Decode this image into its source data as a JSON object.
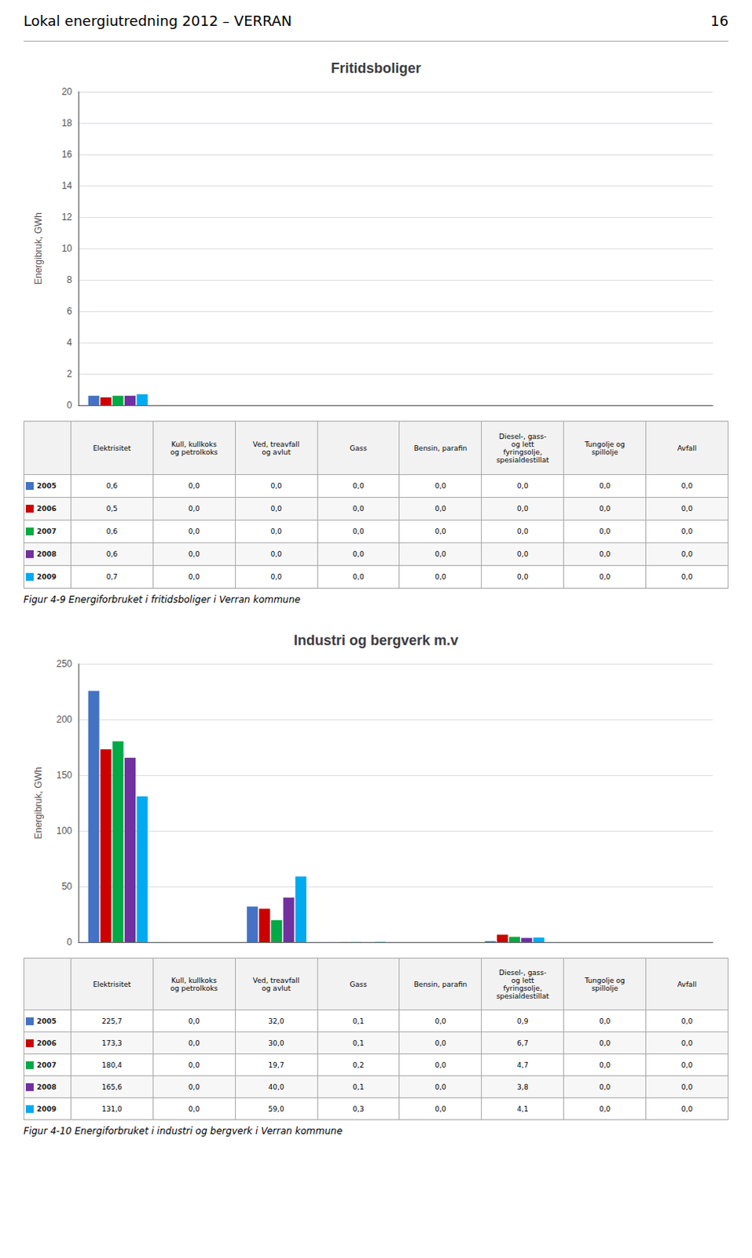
{
  "page_title": "Lokal energiutredning 2012 – VERRAN",
  "page_number": "16",
  "chart_data": [
    {
      "type": "bar",
      "title": "Fritidsboliger",
      "caption": "Figur 4-9 Energiforbruket i fritidsboliger i Verran kommune",
      "ylabel": "Energibruk, GWh",
      "categories": [
        "Elektrisitet",
        "Kull, kullkoks\nog petrolkoks",
        "Ved, treavfall\nog avlut",
        "Gass",
        "Bensin, parafin",
        "Diesel-, gass-\nog lett\nfyringsolje,\nspesialdestillat",
        "Tungolje og\nspillolje",
        "Avfall"
      ],
      "series": [
        {
          "name": "2005",
          "color": "#4472C4",
          "values": [
            0.6,
            0.0,
            0.0,
            0.0,
            0.0,
            0.0,
            0.0,
            0.0
          ],
          "value_labels": [
            "0,6",
            "0,0",
            "0,0",
            "0,0",
            "0,0",
            "0,0",
            "0,0",
            "0,0"
          ]
        },
        {
          "name": "2006",
          "color": "#CC0000",
          "values": [
            0.5,
            0.0,
            0.0,
            0.0,
            0.0,
            0.0,
            0.0,
            0.0
          ],
          "value_labels": [
            "0,5",
            "0,0",
            "0,0",
            "0,0",
            "0,0",
            "0,0",
            "0,0",
            "0,0"
          ]
        },
        {
          "name": "2007",
          "color": "#00AA44",
          "values": [
            0.6,
            0.0,
            0.0,
            0.0,
            0.0,
            0.0,
            0.0,
            0.0
          ],
          "value_labels": [
            "0,6",
            "0,0",
            "0,0",
            "0,0",
            "0,0",
            "0,0",
            "0,0",
            "0,0"
          ]
        },
        {
          "name": "2008",
          "color": "#7030A0",
          "values": [
            0.6,
            0.0,
            0.0,
            0.0,
            0.0,
            0.0,
            0.0,
            0.0
          ],
          "value_labels": [
            "0,6",
            "0,0",
            "0,0",
            "0,0",
            "0,0",
            "0,0",
            "0,0",
            "0,0"
          ]
        },
        {
          "name": "2009",
          "color": "#00AAEE",
          "values": [
            0.7,
            0.0,
            0.0,
            0.0,
            0.0,
            0.0,
            0.0,
            0.0
          ],
          "value_labels": [
            "0,7",
            "0,0",
            "0,0",
            "0,0",
            "0,0",
            "0,0",
            "0,0",
            "0,0"
          ]
        }
      ],
      "ylim": [
        0,
        20
      ],
      "yticks": [
        0,
        2,
        4,
        6,
        8,
        10,
        12,
        14,
        16,
        18,
        20
      ],
      "grid": true,
      "tick_labels": "y"
    },
    {
      "type": "bar",
      "title": "Industri og bergverk m.v",
      "caption": "Figur 4-10 Energiforbruket i industri og bergverk i Verran kommune",
      "ylabel": "Energibruk, GWh",
      "categories": [
        "Elektrisitet",
        "Kull, kullkoks\nog petrolkoks",
        "Ved, treavfall\nog avlut",
        "Gass",
        "Bensin, parafin",
        "Diesel-, gass-\nog lett\nfyringsolje,\nspesialdestillat",
        "Tungolje og\nspillolje",
        "Avfall"
      ],
      "series": [
        {
          "name": "2005",
          "color": "#4472C4",
          "values": [
            225.7,
            0.0,
            32.0,
            0.1,
            0.0,
            0.9,
            0.0,
            0.0
          ],
          "value_labels": [
            "225,7",
            "0,0",
            "32,0",
            "0,1",
            "0,0",
            "0,9",
            "0,0",
            "0,0"
          ]
        },
        {
          "name": "2006",
          "color": "#CC0000",
          "values": [
            173.3,
            0.0,
            30.0,
            0.1,
            0.0,
            6.7,
            0.0,
            0.0
          ],
          "value_labels": [
            "173,3",
            "0,0",
            "30,0",
            "0,1",
            "0,0",
            "6,7",
            "0,0",
            "0,0"
          ]
        },
        {
          "name": "2007",
          "color": "#00AA44",
          "values": [
            180.4,
            0.0,
            19.7,
            0.2,
            0.0,
            4.7,
            0.0,
            0.0
          ],
          "value_labels": [
            "180,4",
            "0,0",
            "19,7",
            "0,2",
            "0,0",
            "4,7",
            "0,0",
            "0,0"
          ]
        },
        {
          "name": "2008",
          "color": "#7030A0",
          "values": [
            165.6,
            0.0,
            40.0,
            0.1,
            0.0,
            3.8,
            0.0,
            0.0
          ],
          "value_labels": [
            "165,6",
            "0,0",
            "40,0",
            "0,1",
            "0,0",
            "3,8",
            "0,0",
            "0,0"
          ]
        },
        {
          "name": "2009",
          "color": "#00AAEE",
          "values": [
            131.0,
            0.0,
            59.0,
            0.3,
            0.0,
            4.1,
            0.0,
            0.0
          ],
          "value_labels": [
            "131,0",
            "0,0",
            "59,0",
            "0,3",
            "0,0",
            "4,1",
            "0,0",
            "0,0"
          ]
        }
      ],
      "ylim": [
        0,
        250
      ],
      "yticks": [
        0,
        50,
        100,
        150,
        200,
        250
      ],
      "grid": true,
      "tick_labels": "y"
    }
  ]
}
